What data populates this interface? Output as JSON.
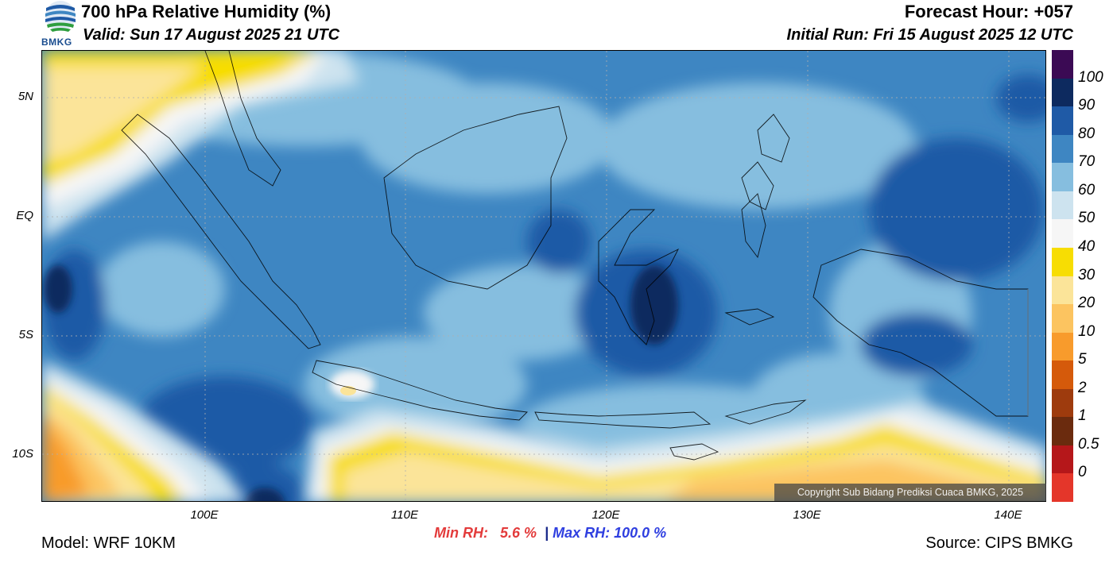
{
  "header": {
    "title": "700 hPa Relative Humidity (%)",
    "valid": "Valid: Sun 17 August 2025 21 UTC",
    "forecast_hour": "Forecast Hour: +057",
    "initial_run": "Initial Run: Fri 15 August 2025 12 UTC",
    "logo_text": "BMKG"
  },
  "map": {
    "y_labels": [
      "5N",
      "EQ",
      "5S",
      "10S"
    ],
    "x_labels": [
      "100E",
      "110E",
      "120E",
      "130E",
      "140E"
    ],
    "copyright": "Copyright Sub Bidang Prediksi Cuaca BMKG, 2025"
  },
  "colorbar": {
    "labels": [
      "100",
      "90",
      "80",
      "70",
      "60",
      "50",
      "40",
      "30",
      "20",
      "10",
      "5",
      "2",
      "1",
      "0.5",
      "0"
    ],
    "colors": [
      "#3b0a54",
      "#0d2a5f",
      "#1f5aa6",
      "#3e86c2",
      "#86bedf",
      "#cde3ef",
      "#f6f6f6",
      "#f7dd03",
      "#fbe499",
      "#fcc460",
      "#f89b2c",
      "#d55a0b",
      "#9e3b0d",
      "#6b2b0e",
      "#b5171a",
      "#e4362a"
    ]
  },
  "stats": {
    "min_label": "Min RH:",
    "min_value": "5.6 %",
    "separator": "|",
    "max_label": "Max RH:",
    "max_value": "100.0 %",
    "min_color": "#e33b3b",
    "max_color": "#2f3fe0"
  },
  "footer": {
    "model": "Model: WRF 10KM",
    "source": "Source: CIPS BMKG"
  }
}
